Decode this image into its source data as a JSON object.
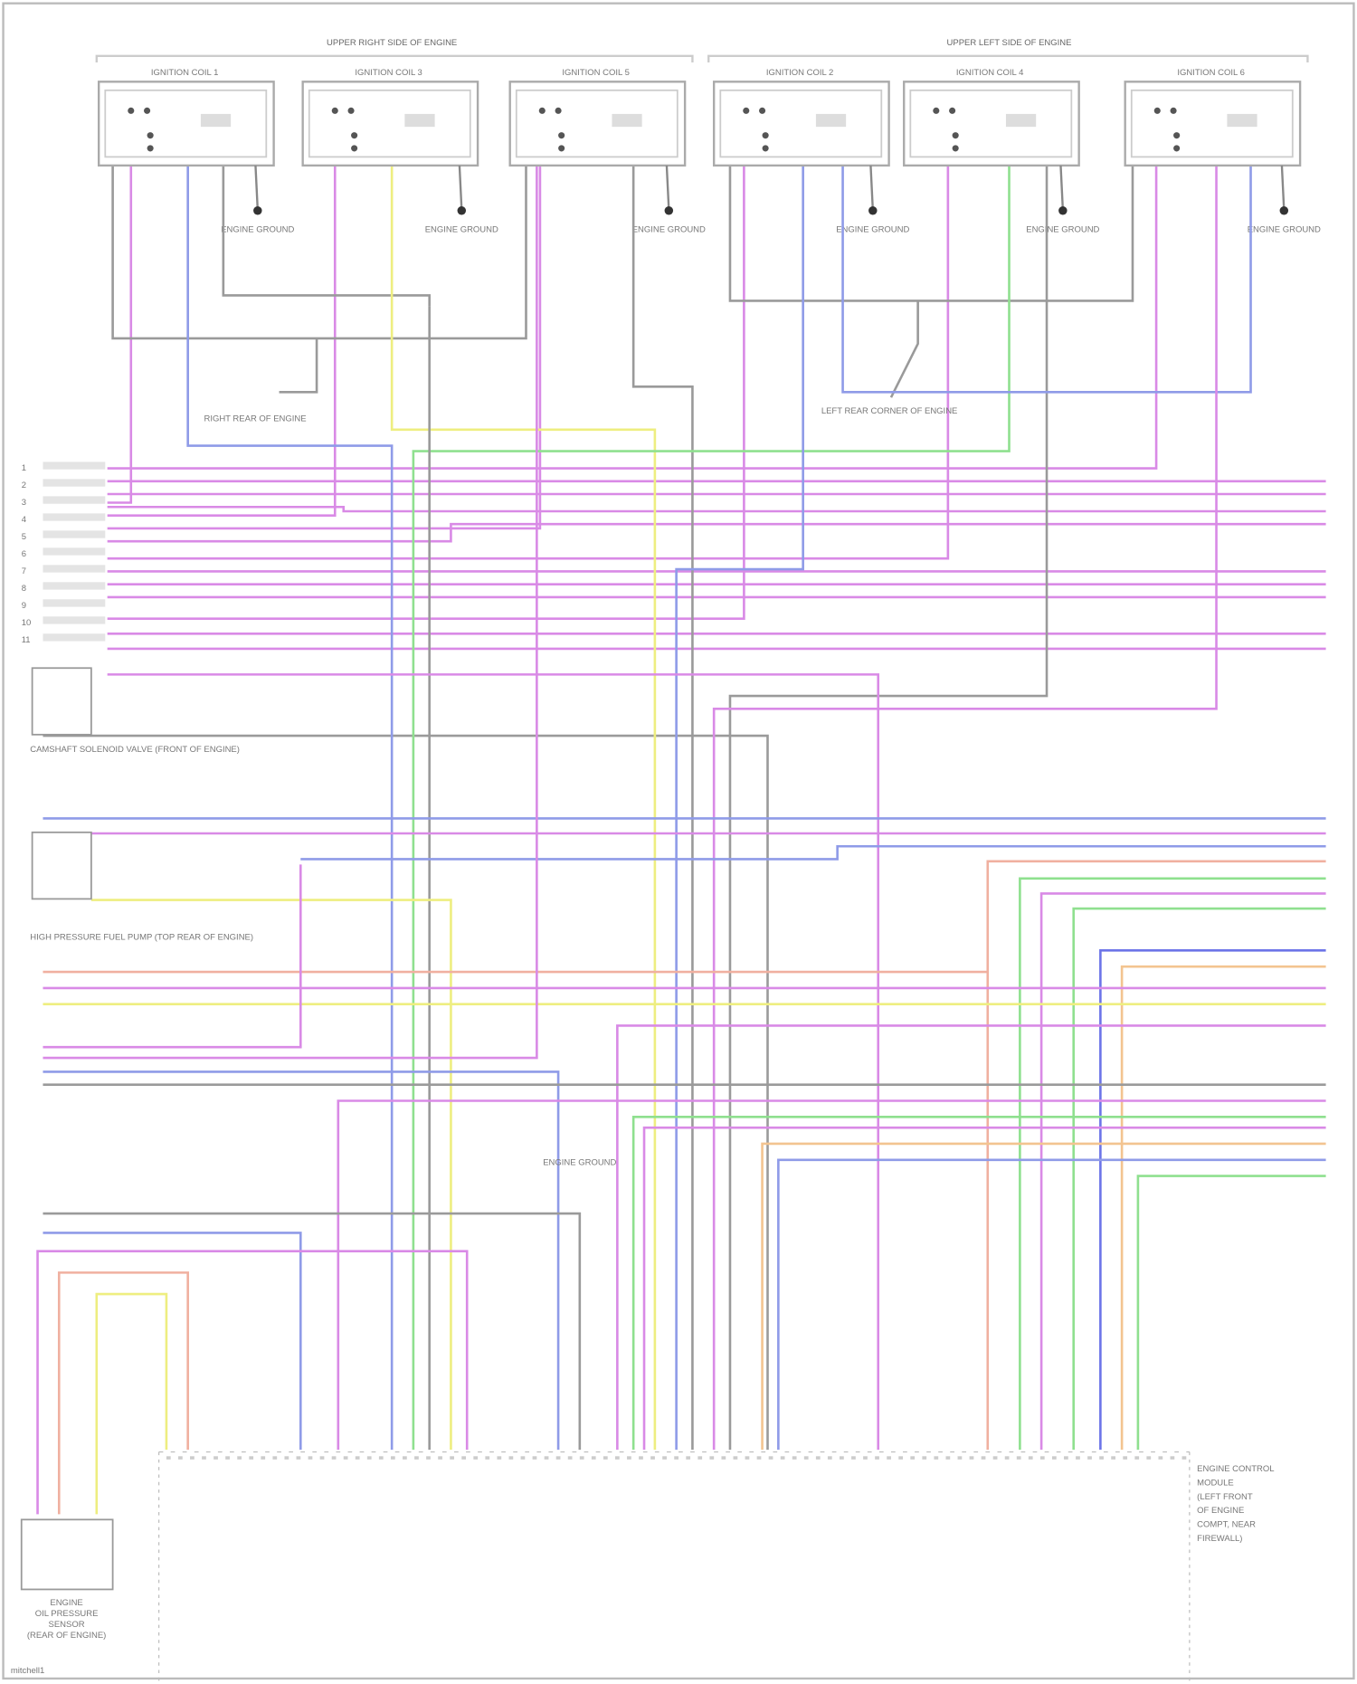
{
  "headers": {
    "right_bank": "UPPER RIGHT SIDE OF ENGINE",
    "left_bank": "UPPER LEFT SIDE OF ENGINE"
  },
  "coils": [
    {
      "label": "IGNITION COIL 1",
      "ground": "ENGINE GROUND"
    },
    {
      "label": "IGNITION COIL 3",
      "ground": "ENGINE GROUND"
    },
    {
      "label": "IGNITION COIL 5",
      "ground": "ENGINE GROUND"
    },
    {
      "label": "IGNITION COIL 2",
      "ground": "ENGINE GROUND"
    },
    {
      "label": "IGNITION COIL 4",
      "ground": "ENGINE GROUND"
    },
    {
      "label": "IGNITION COIL 6",
      "ground": "ENGINE GROUND"
    }
  ],
  "components": {
    "camshaft_valve": "CAMSHAFT SOLENOID VALVE (FRONT OF ENGINE)",
    "fuel_pump": "HIGH PRESSURE FUEL PUMP (TOP REAR OF ENGINE)",
    "oil_sensor": [
      "ENGINE",
      "OIL PRESSURE",
      "SENSOR",
      "(REAR OF ENGINE)"
    ],
    "ecm": [
      "ENGINE CONTROL",
      "MODULE",
      "(LEFT FRONT",
      "OF ENGINE",
      "COMPT, NEAR",
      "FIREWALL)"
    ],
    "ground_left": "RIGHT REAR OF ENGINE",
    "ground_right": "LEFT REAR CORNER OF ENGINE",
    "splice_center": "ENGINE GROUND"
  },
  "wire_colors": {
    "pink": "#d98ae6",
    "blue": "#8f9be8",
    "green": "#8fe08f",
    "yellow": "#eeee80",
    "gray": "#9a9a9a",
    "salmon": "#f0b0a0",
    "orange": "#f3c490",
    "darkblue": "#6c74e8"
  },
  "left_pin_numbers": [
    "1",
    "2",
    "3",
    "4",
    "5",
    "6",
    "7",
    "8",
    "9",
    "10",
    "11"
  ],
  "footer": "mitchell1"
}
